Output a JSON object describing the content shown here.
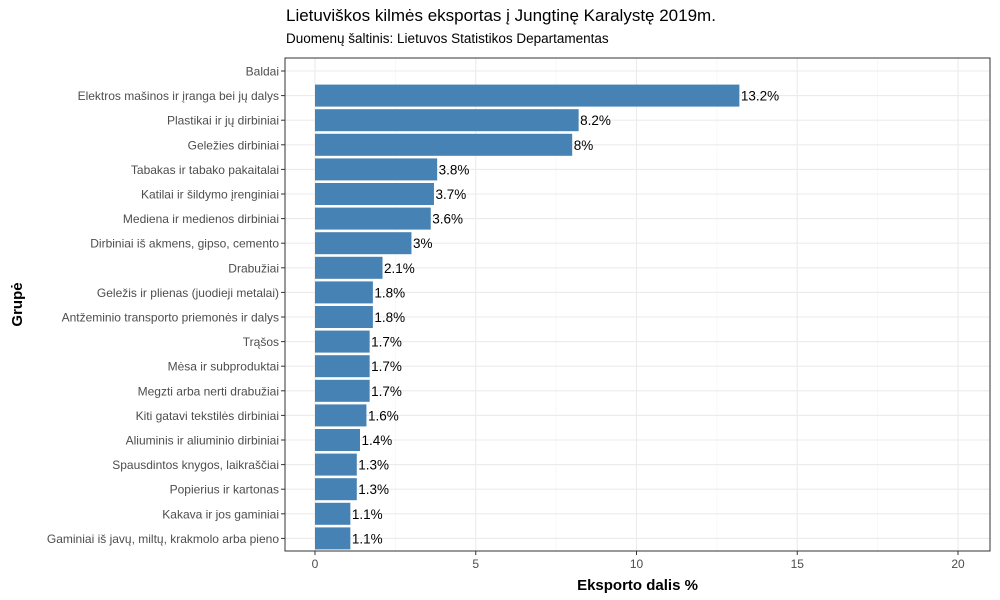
{
  "chart_data": {
    "type": "bar",
    "orientation": "horizontal",
    "title": "Lietuviškos kilmės eksportas į Jungtinę Karalystę 2019m.",
    "subtitle": "Duomenų šaltinis: Lietuvos Statistikos Departamentas",
    "xlabel": "Eksporto dalis %",
    "ylabel": "Grupė",
    "xlim": [
      0,
      20
    ],
    "xticks": [
      0,
      5,
      10,
      15,
      20
    ],
    "grid": true,
    "bar_color": "#4682b4",
    "categories": [
      "Baldai",
      "Elektros mašinos ir įranga bei jų dalys",
      "Plastikai ir jų dirbiniai",
      "Geležies dirbiniai",
      "Tabakas ir tabako pakaitalai",
      "Katilai ir šildymo įrenginiai",
      "Mediena ir medienos dirbiniai",
      "Dirbiniai iš akmens, gipso, cemento",
      "Drabužiai",
      "Geležis ir plienas (juodieji metalai)",
      "Antžeminio transporto priemonės ir dalys",
      "Trąšos",
      "Mėsa ir subproduktai",
      "Megzti arba nerti drabužiai",
      "Kiti gatavi tekstilės dirbiniai",
      "Aliuminis ir aliuminio dirbiniai",
      "Spausdintos knygos, laikraščiai",
      "Popierius ir kartonas",
      "Kakava ir jos gaminiai",
      "Gaminiai iš javų, miltų, krakmolo arba pieno"
    ],
    "values": [
      null,
      13.2,
      8.2,
      8,
      3.8,
      3.7,
      3.6,
      3,
      2.1,
      1.8,
      1.8,
      1.7,
      1.7,
      1.7,
      1.6,
      1.4,
      1.3,
      1.3,
      1.1,
      1.1
    ],
    "value_labels": [
      "",
      "13.2%",
      "8.2%",
      "8%",
      "3.8%",
      "3.7%",
      "3.6%",
      "3%",
      "2.1%",
      "1.8%",
      "1.8%",
      "1.7%",
      "1.7%",
      "1.7%",
      "1.6%",
      "1.4%",
      "1.3%",
      "1.3%",
      "1.1%",
      "1.1%"
    ]
  }
}
